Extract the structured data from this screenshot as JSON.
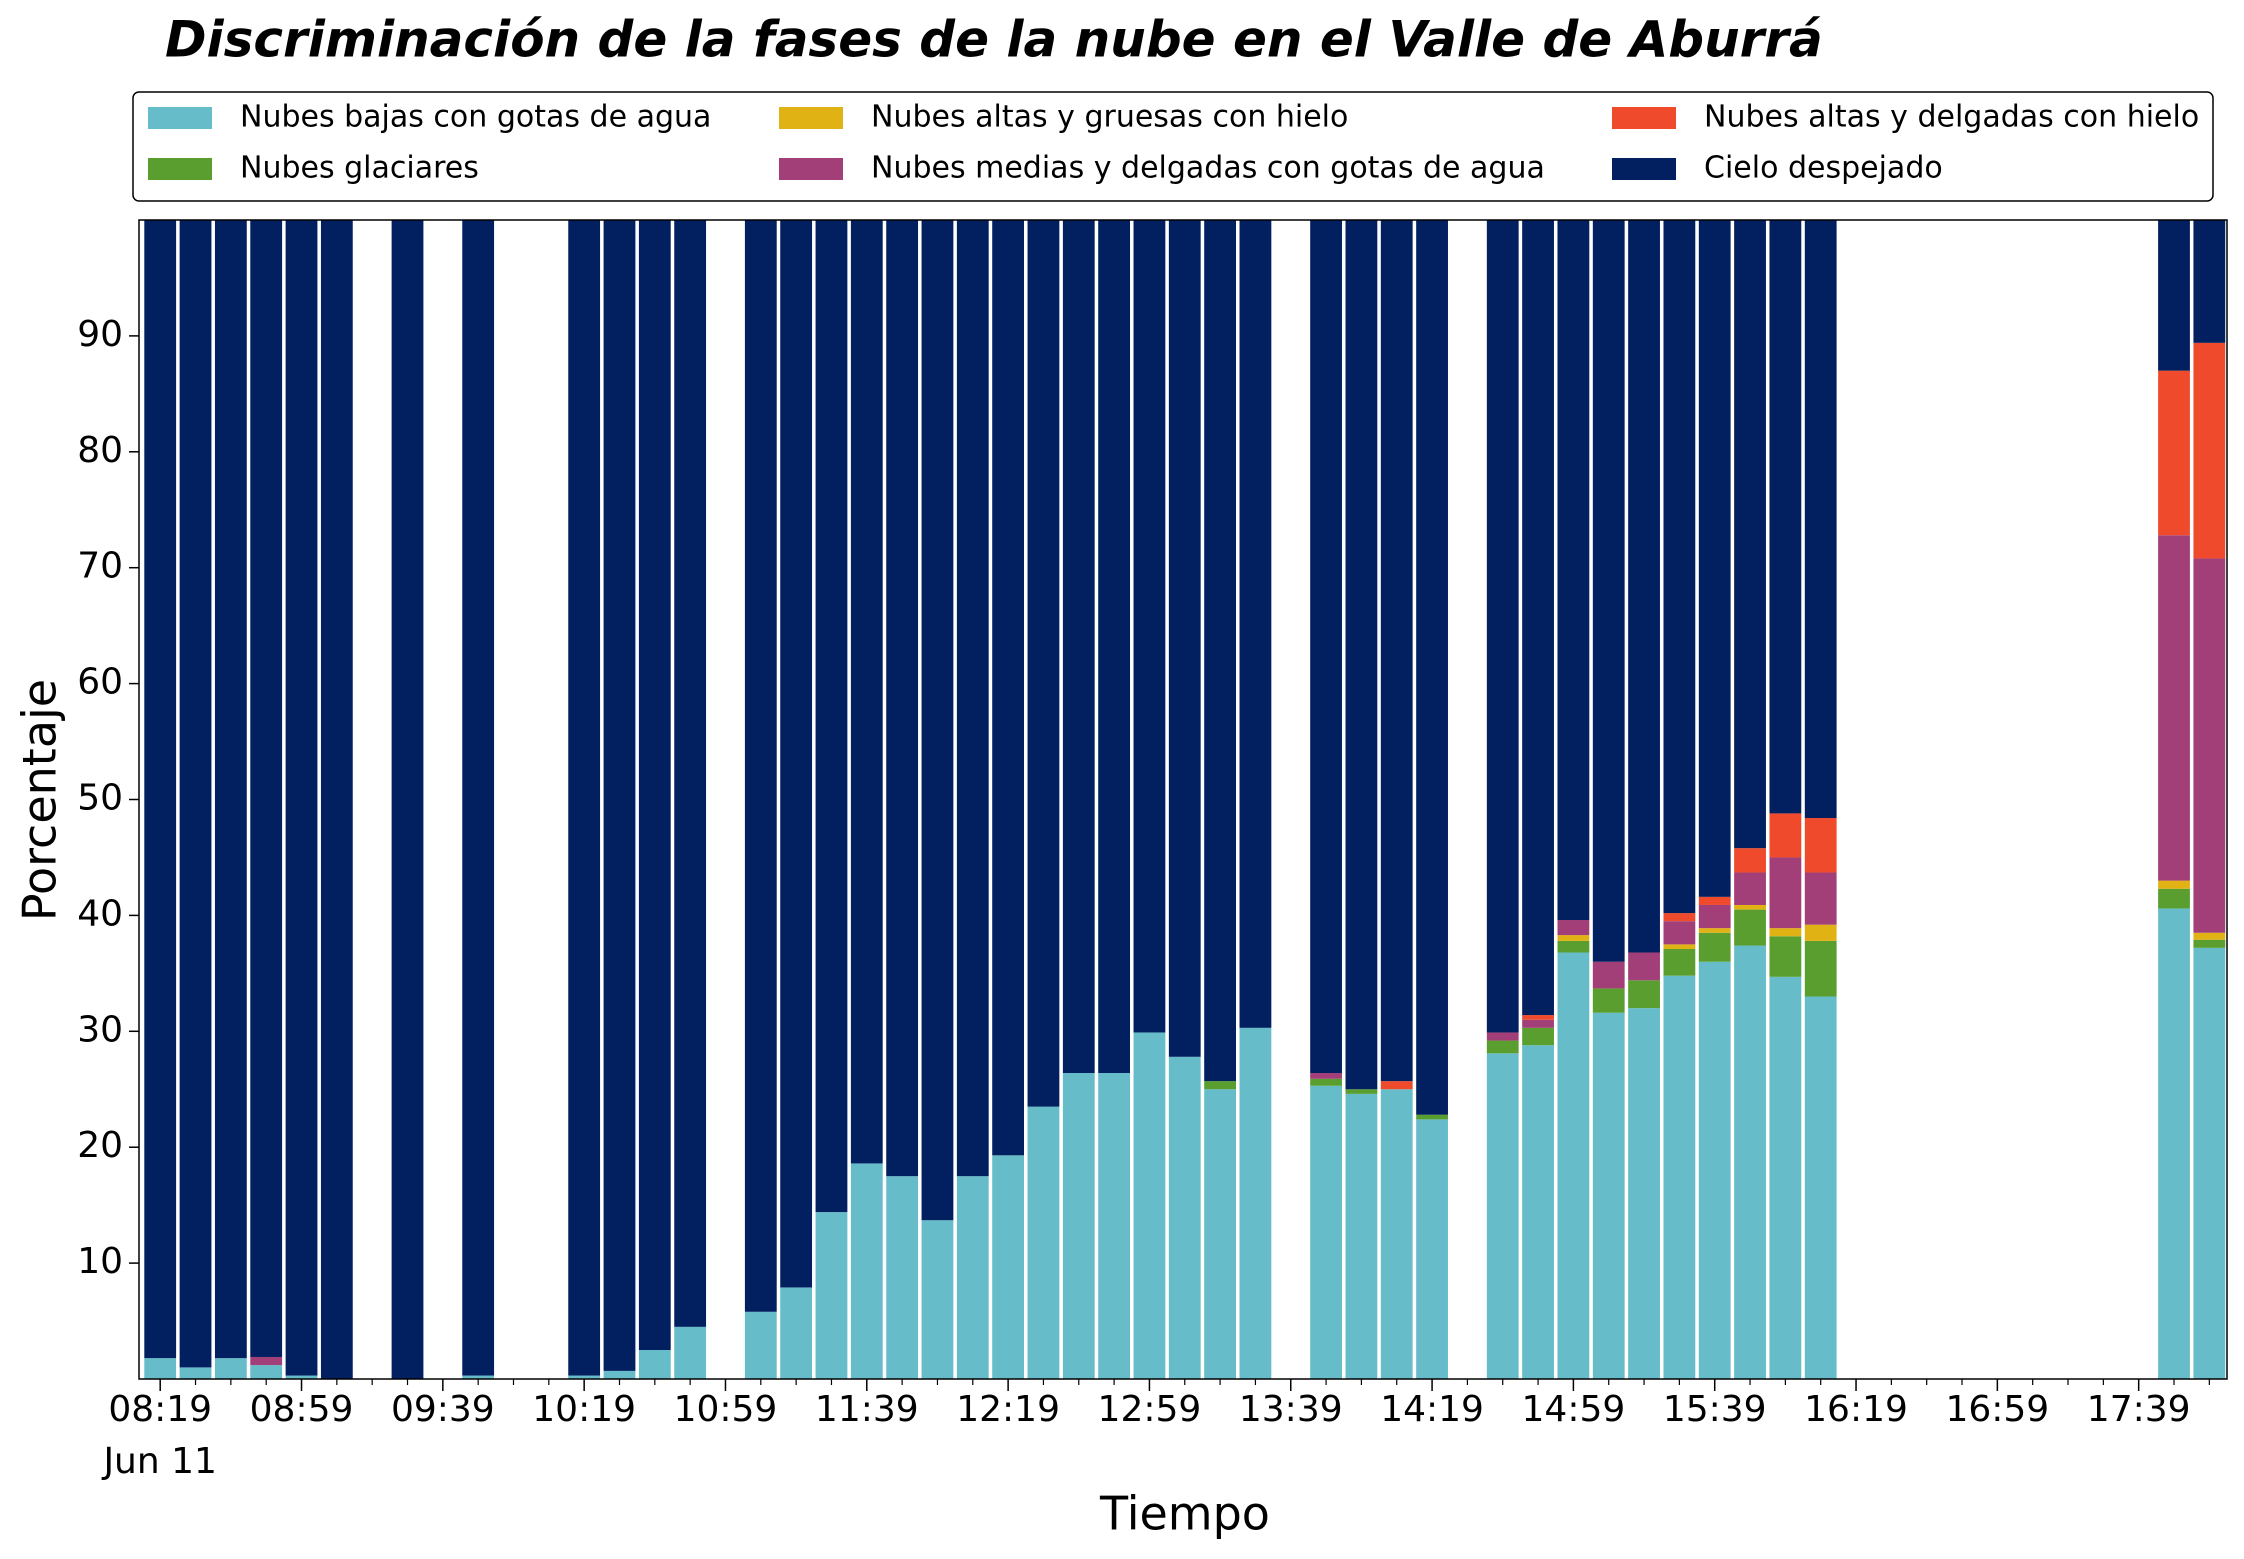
{
  "chart_data": {
    "type": "stacked_bar",
    "title": "Discriminación de la fases de la nube en el Valle de Aburrá",
    "xlabel": "Tiempo",
    "ylabel": "Porcentaje",
    "x_date_label": "Jun 11",
    "x": [
      "08:19",
      "08:29",
      "08:39",
      "08:49",
      "08:59",
      "09:09",
      "09:29",
      "09:49",
      "10:19",
      "10:29",
      "10:39",
      "10:49",
      "11:09",
      "11:19",
      "11:29",
      "11:39",
      "11:49",
      "11:59",
      "12:09",
      "12:19",
      "12:29",
      "12:39",
      "12:49",
      "12:59",
      "13:09",
      "13:19",
      "13:29",
      "13:49",
      "13:59",
      "14:09",
      "14:19",
      "14:39",
      "14:49",
      "14:59",
      "15:09",
      "15:19",
      "15:29",
      "15:39",
      "15:49",
      "15:59",
      "16:09",
      "17:49",
      "17:59"
    ],
    "series": [
      {
        "name": "Nubes bajas con gotas de agua",
        "color": "#66bdc9",
        "values": [
          1.8,
          1.0,
          1.8,
          1.2,
          0.3,
          0,
          0,
          0.3,
          0.3,
          0.7,
          2.5,
          4.5,
          5.8,
          7.9,
          14.4,
          18.6,
          17.5,
          13.7,
          17.5,
          19.3,
          23.5,
          26.4,
          26.4,
          29.9,
          27.8,
          25.0,
          30.3,
          25.3,
          24.6,
          25.0,
          22.4,
          28.1,
          28.8,
          36.8,
          31.6,
          32.0,
          34.8,
          36.0,
          37.4,
          34.7,
          33.0,
          40.6,
          37.2
        ]
      },
      {
        "name": "Nubes glaciares",
        "color": "#5a9e2f",
        "values": [
          0,
          0,
          0,
          0,
          0,
          0,
          0,
          0,
          0,
          0,
          0,
          0,
          0,
          0,
          0,
          0,
          0,
          0,
          0,
          0,
          0,
          0,
          0,
          0,
          0,
          0.7,
          0,
          0.6,
          0.4,
          0,
          0.4,
          1.1,
          1.5,
          1.0,
          2.1,
          2.4,
          2.3,
          2.5,
          3.1,
          3.5,
          4.8,
          1.7,
          0.7
        ]
      },
      {
        "name": "Nubes altas y gruesas con hielo",
        "color": "#e0b214",
        "values": [
          0,
          0,
          0,
          0,
          0,
          0,
          0,
          0,
          0,
          0,
          0,
          0,
          0,
          0,
          0,
          0,
          0,
          0,
          0,
          0,
          0,
          0,
          0,
          0,
          0,
          0,
          0,
          0,
          0,
          0,
          0,
          0,
          0,
          0.5,
          0,
          0,
          0.4,
          0.4,
          0.4,
          0.7,
          1.4,
          0.7,
          0.6
        ]
      },
      {
        "name": "Nubes medias y delgadas con gotas de agua",
        "color": "#a23f78",
        "values": [
          0,
          0,
          0,
          0.7,
          0,
          0,
          0,
          0,
          0,
          0,
          0,
          0,
          0,
          0,
          0,
          0,
          0,
          0,
          0,
          0,
          0,
          0,
          0,
          0,
          0,
          0,
          0,
          0.5,
          0,
          0,
          0,
          0.7,
          0.7,
          1.3,
          2.3,
          2.4,
          2.0,
          2.0,
          2.8,
          6.1,
          4.5,
          29.8,
          32.3
        ]
      },
      {
        "name": "Nubes altas y delgadas con hielo",
        "color": "#ef4a2b",
        "values": [
          0,
          0,
          0,
          0,
          0,
          0,
          0,
          0,
          0,
          0,
          0,
          0,
          0,
          0,
          0,
          0,
          0,
          0,
          0,
          0,
          0,
          0,
          0,
          0,
          0,
          0,
          0,
          0,
          0,
          0.7,
          0,
          0,
          0.4,
          0,
          0,
          0,
          0.7,
          0.7,
          2.1,
          3.8,
          4.7,
          14.2,
          18.6
        ]
      },
      {
        "name": "Cielo despejado",
        "color": "#021f5f",
        "values": [
          98.2,
          99.0,
          98.2,
          98.1,
          99.7,
          100,
          100,
          99.7,
          99.7,
          99.3,
          97.5,
          95.5,
          94.2,
          92.1,
          85.6,
          81.4,
          82.5,
          86.3,
          82.5,
          80.7,
          76.5,
          73.6,
          73.6,
          70.1,
          72.2,
          74.3,
          69.7,
          73.6,
          75.0,
          74.3,
          77.2,
          70.1,
          68.6,
          60.4,
          64.0,
          63.2,
          59.8,
          58.4,
          54.2,
          51.2,
          51.6,
          13.0,
          10.6
        ]
      }
    ],
    "xlim": [
      "08:13",
      "18:04"
    ],
    "xticks": [
      "08:19",
      "08:59",
      "09:39",
      "10:19",
      "10:59",
      "11:39",
      "12:19",
      "12:59",
      "13:39",
      "14:19",
      "14:59",
      "15:39",
      "16:19",
      "16:59",
      "17:39"
    ],
    "xticks_minor": [
      "08:29",
      "08:39",
      "08:49",
      "09:09",
      "09:19",
      "09:29",
      "09:49",
      "09:59",
      "10:09",
      "10:29",
      "10:39",
      "10:49",
      "11:09",
      "11:19",
      "11:29",
      "11:49",
      "11:59",
      "12:09",
      "12:29",
      "12:39",
      "12:49",
      "13:09",
      "13:19",
      "13:29",
      "13:49",
      "13:59",
      "14:09",
      "14:29",
      "14:39",
      "14:49",
      "15:09",
      "15:19",
      "15:29",
      "15:49",
      "15:59",
      "16:09",
      "16:29",
      "16:39",
      "16:49",
      "17:09",
      "17:19",
      "17:29",
      "17:49",
      "17:59"
    ],
    "ylim": [
      0,
      100
    ],
    "yticks": [
      10,
      20,
      30,
      40,
      50,
      60,
      70,
      80,
      90
    ],
    "legend": "top"
  }
}
